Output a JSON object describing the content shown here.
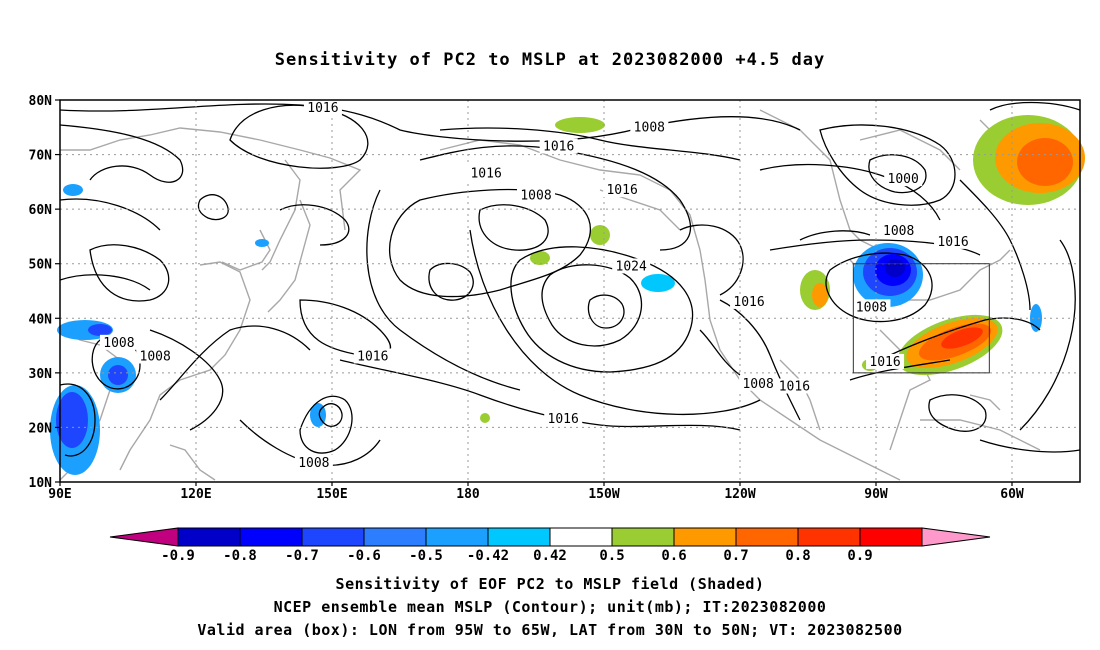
{
  "title": "Sensitivity of PC2 to MSLP at 2023082000 +4.5 day",
  "lat_labels": [
    "80N",
    "70N",
    "60N",
    "50N",
    "40N",
    "30N",
    "20N",
    "10N"
  ],
  "lon_labels": [
    "90E",
    "120E",
    "150E",
    "180",
    "150W",
    "120W",
    "90W",
    "60W"
  ],
  "contour_labels": [
    {
      "text": "1016",
      "lon": 148,
      "lat": 78.5
    },
    {
      "text": "1008",
      "lon": -140,
      "lat": 75
    },
    {
      "text": "1016",
      "lon": -160,
      "lat": 71.5
    },
    {
      "text": "1016",
      "lon": -176,
      "lat": 66.5
    },
    {
      "text": "1008",
      "lon": -165,
      "lat": 62.5
    },
    {
      "text": "1016",
      "lon": -146,
      "lat": 63.5
    },
    {
      "text": "1000",
      "lon": -84,
      "lat": 65.5
    },
    {
      "text": "1008",
      "lon": -85,
      "lat": 56
    },
    {
      "text": "1016",
      "lon": -73,
      "lat": 54
    },
    {
      "text": "1024",
      "lon": -144,
      "lat": 49.5
    },
    {
      "text": "1016",
      "lon": -118,
      "lat": 43
    },
    {
      "text": "1008",
      "lon": -91,
      "lat": 42
    },
    {
      "text": "1016",
      "lon": -88,
      "lat": 32
    },
    {
      "text": "1008",
      "lon": -116,
      "lat": 28
    },
    {
      "text": "1016",
      "lon": -108,
      "lat": 27.5
    },
    {
      "text": "1016",
      "lon": -159,
      "lat": 21.5
    },
    {
      "text": "1016",
      "lon": 159,
      "lat": 33
    },
    {
      "text": "1008",
      "lon": 103,
      "lat": 35.5
    },
    {
      "text": "1008",
      "lon": 111,
      "lat": 33
    },
    {
      "text": "1008",
      "lon": 146,
      "lat": 13.5
    }
  ],
  "valid_box": {
    "lon_west": -95,
    "lon_east": -65,
    "lat_south": 30,
    "lat_north": 50
  },
  "colorbar": {
    "labels": [
      "-0.9",
      "-0.8",
      "-0.7",
      "-0.6",
      "-0.5",
      "-0.42",
      "0.42",
      "0.5",
      "0.6",
      "0.7",
      "0.8",
      "0.9"
    ],
    "colors": [
      "#c0007f",
      "#0000c8",
      "#0000ff",
      "#1e46ff",
      "#2d7dff",
      "#1ca0ff",
      "#00c8ff",
      "#ffffff",
      "#9acd32",
      "#ff9900",
      "#ff6600",
      "#ff3300",
      "#ff0000",
      "#ff99cc"
    ]
  },
  "captions": {
    "line1": "Sensitivity of EOF PC2 to MSLP field (Shaded)",
    "line2": "NCEP ensemble mean MSLP (Contour); unit(mb); IT:2023082000",
    "line3": "Valid area (box): LON from 95W to 65W, LAT from 30N to 50N; VT: 2023082500"
  }
}
